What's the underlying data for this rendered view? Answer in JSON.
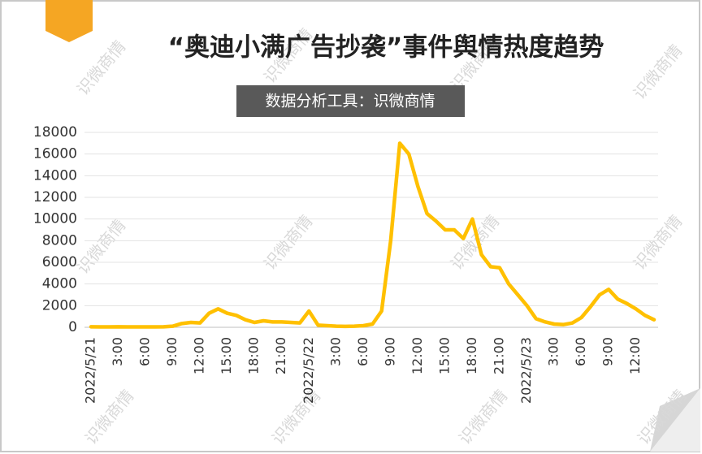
{
  "chart_data": {
    "type": "line",
    "title": "“奥迪小满广告抄袭”事件舆情热度趋势",
    "subtitle": "数据分析工具：识微商情",
    "watermark": "识微商情",
    "categories": [
      "2022/5/21",
      null,
      null,
      "3:00",
      null,
      null,
      "6:00",
      null,
      null,
      "9:00",
      null,
      null,
      "12:00",
      null,
      null,
      "15:00",
      null,
      null,
      "18:00",
      null,
      null,
      "21:00",
      null,
      null,
      "2022/5/22",
      null,
      null,
      "3:00",
      null,
      null,
      "6:00",
      null,
      null,
      "9:00",
      null,
      null,
      "12:00",
      null,
      null,
      "15:00",
      null,
      null,
      "18:00",
      null,
      null,
      "21:00",
      null,
      null,
      "2022/5/23",
      null,
      null,
      "3:00",
      null,
      null,
      "6:00",
      null,
      null,
      "9:00",
      null,
      null,
      "12:00",
      null,
      null
    ],
    "series": [
      {
        "color": "#FFC000",
        "values": [
          50,
          40,
          40,
          50,
          40,
          40,
          40,
          40,
          50,
          100,
          350,
          450,
          400,
          1300,
          1700,
          1300,
          1100,
          700,
          450,
          600,
          500,
          500,
          450,
          400,
          1500,
          200,
          150,
          100,
          80,
          100,
          150,
          300,
          1500,
          8000,
          17000,
          16000,
          13000,
          10500,
          9800,
          9000,
          9000,
          8200,
          10000,
          6700,
          5600,
          5500,
          4000,
          3000,
          2000,
          800,
          500,
          300,
          250,
          400,
          900,
          1900,
          3000,
          3500,
          2600,
          2200,
          1700,
          1100,
          700
        ]
      }
    ],
    "ylim": [
      0,
      18000
    ],
    "yticks": [
      0,
      2000,
      4000,
      6000,
      8000,
      10000,
      12000,
      14000,
      16000,
      18000
    ],
    "grid": true
  }
}
